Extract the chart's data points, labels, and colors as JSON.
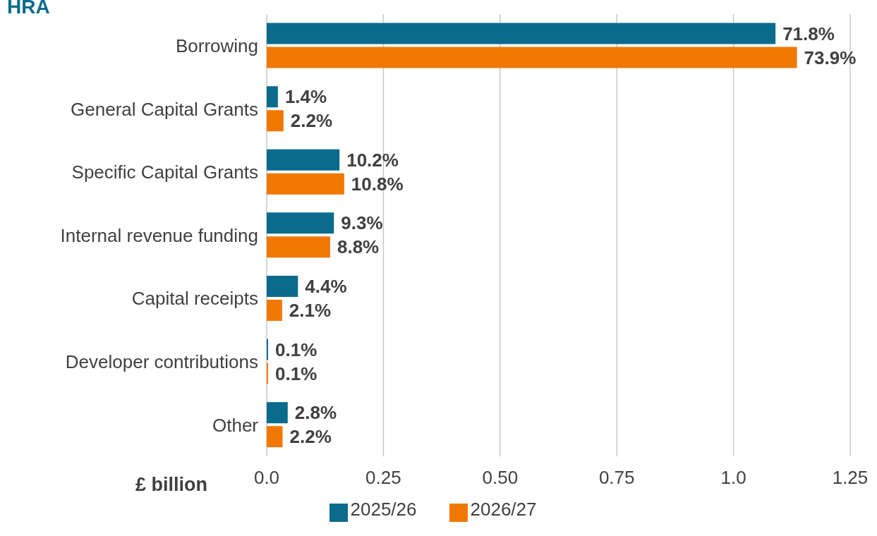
{
  "chart_data": {
    "type": "bar",
    "orientation": "horizontal",
    "title": "HRA",
    "xlabel": "£ billion",
    "categories": [
      "Borrowing",
      "General Capital Grants",
      "Specific Capital Grants",
      "Internal revenue funding",
      "Capital receipts",
      "Developer contributions",
      "Other"
    ],
    "series": [
      {
        "name": "2025/26",
        "color": "#0a6b8c",
        "values": [
          1.09,
          0.024,
          0.156,
          0.144,
          0.067,
          0.003,
          0.045
        ]
      },
      {
        "name": "2026/27",
        "color": "#f07800",
        "values": [
          1.136,
          0.036,
          0.166,
          0.136,
          0.033,
          0.003,
          0.034
        ]
      }
    ],
    "annotations": [
      {
        "text": "71.8%",
        "x": 1.09,
        "y": "Borrowing"
      },
      {
        "text": "73.9%",
        "x": 1.136,
        "y": "Borrowing"
      },
      {
        "text": "1.4%",
        "x": 0.024,
        "y": "General Capital Grants"
      },
      {
        "text": "2.2%",
        "x": 0.036,
        "y": "General Capital Grants"
      },
      {
        "text": "10.2%",
        "x": 0.156,
        "y": "Specific Capital Grants"
      },
      {
        "text": "10.8%",
        "x": 0.166,
        "y": "Specific Capital Grants"
      },
      {
        "text": "9.3%",
        "x": 0.144,
        "y": "Internal revenue funding"
      },
      {
        "text": "8.8%",
        "x": 0.136,
        "y": "Internal revenue funding"
      },
      {
        "text": "4.4%",
        "x": 0.067,
        "y": "Capital receipts"
      },
      {
        "text": "2.1%",
        "x": 0.033,
        "y": "Capital receipts"
      },
      {
        "text": "0.1%",
        "x": 0.003,
        "y": "Developer contributions"
      },
      {
        "text": "0.1%",
        "x": 0.003,
        "y": "Developer contributions"
      },
      {
        "text": "2.8%",
        "x": 0.045,
        "y": "Other"
      },
      {
        "text": "2.2%",
        "x": 0.034,
        "y": "Other"
      }
    ],
    "xlim": [
      0,
      1.25
    ],
    "xticks": [
      {
        "value": 0,
        "label": "0.0"
      },
      0.25,
      {
        "value": 0.5,
        "label": "0.50"
      },
      0.75,
      {
        "value": 1,
        "label": "1.0"
      },
      1.25
    ],
    "grid": "x",
    "legend": "bottom"
  }
}
